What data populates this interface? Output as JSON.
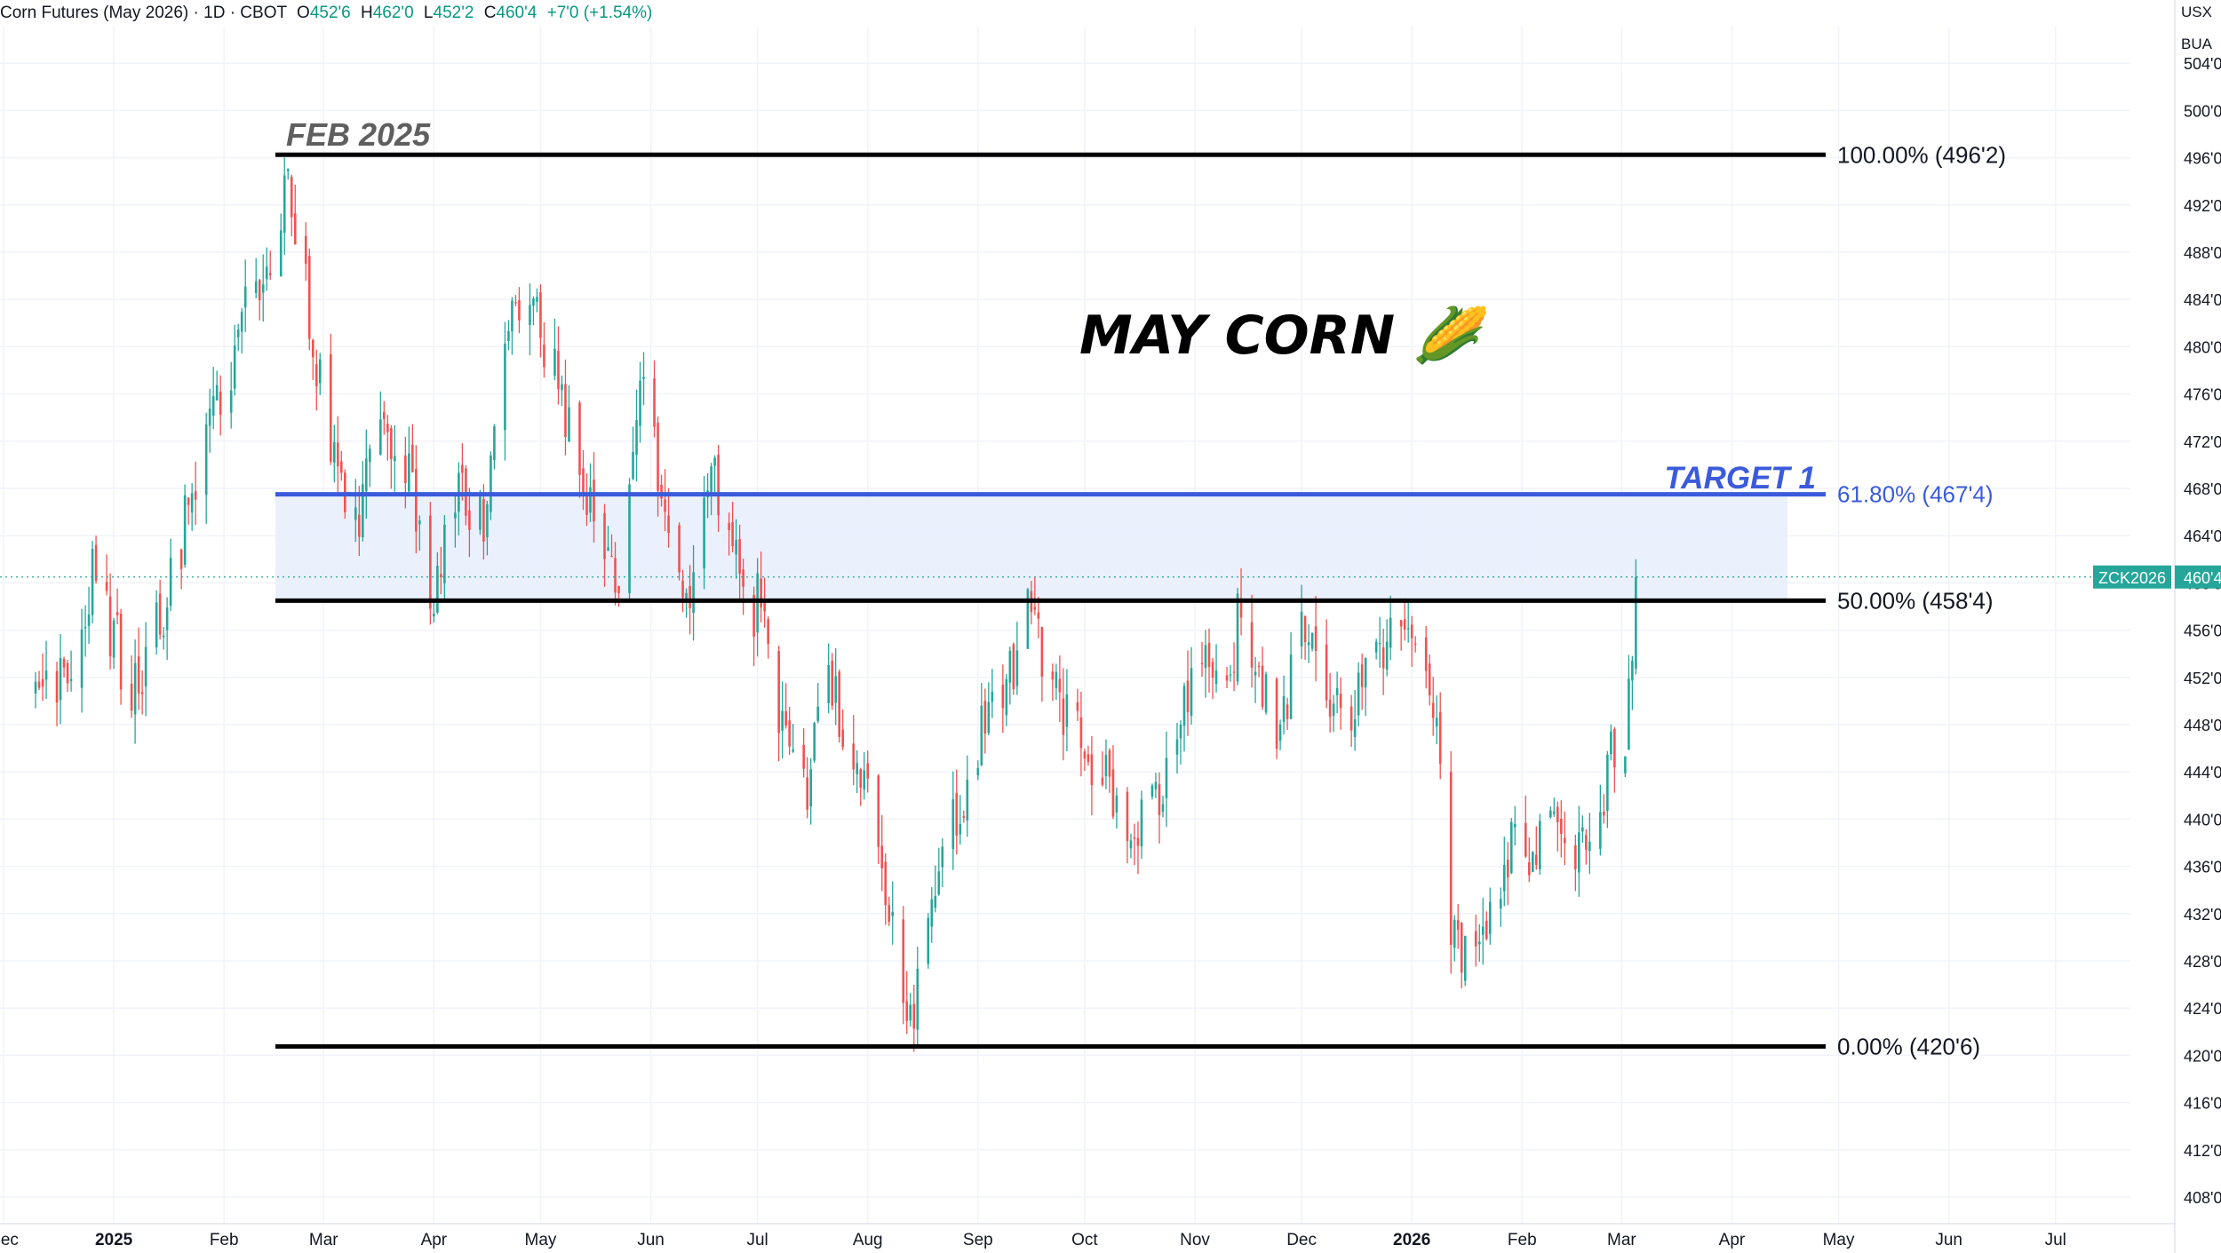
{
  "header": {
    "symbol_title": "Corn Futures (May 2026) · 1D · CBOT",
    "open_label": "O",
    "open": "452'6",
    "high_label": "H",
    "high": "462'0",
    "low_label": "L",
    "low": "452'2",
    "close_label": "C",
    "close": "460'4",
    "change": "+7'0 (+1.54%)"
  },
  "top_right": {
    "currency": "USX",
    "unit": "BUA"
  },
  "colors": {
    "up": "#26a69a",
    "down": "#ef5350",
    "target": "#3b5bdb",
    "zone_fill": "#e8eefc",
    "fib": "#000000"
  },
  "chart_data": {
    "type": "candlestick",
    "title": "MAY CORN 🌽",
    "annotations": [
      "FEB 2025",
      "TARGET 1"
    ],
    "x_ticks": [
      "Dec",
      "2025",
      "Feb",
      "Mar",
      "Apr",
      "May",
      "Jun",
      "Jul",
      "Aug",
      "Sep",
      "Oct",
      "Nov",
      "Dec",
      "2026",
      "Feb",
      "Mar",
      "Apr",
      "May",
      "Jun",
      "Jul"
    ],
    "y_ticks": [
      "504'0",
      "500'0",
      "496'0",
      "492'0",
      "488'0",
      "484'0",
      "480'0",
      "476'0",
      "472'0",
      "468'0",
      "464'0",
      "460'0",
      "456'0",
      "452'0",
      "448'0",
      "444'0",
      "440'0",
      "436'0",
      "432'0",
      "428'0",
      "424'0",
      "420'0",
      "416'0",
      "412'0",
      "408'0"
    ],
    "y_range": [
      406.5,
      505.0
    ],
    "fib_levels": [
      {
        "label": "100.00% (496'2)",
        "value": 496.25
      },
      {
        "label": "61.80% (467'4)",
        "value": 467.5
      },
      {
        "label": "50.00% (458'4)",
        "value": 458.5
      },
      {
        "label": "0.00% (420'6)",
        "value": 420.75
      }
    ],
    "last_price_tag": {
      "symbol": "ZCK2026",
      "value": "460'4",
      "price": 460.5
    },
    "closes": [
      {
        "date": "2024-12-10",
        "close": 449.0
      },
      {
        "date": "2024-12-18",
        "close": 452.0
      },
      {
        "date": "2024-12-26",
        "close": 461.0
      },
      {
        "date": "2025-01-06",
        "close": 451.0
      },
      {
        "date": "2025-01-14",
        "close": 457.0
      },
      {
        "date": "2025-01-22",
        "close": 466.0
      },
      {
        "date": "2025-01-30",
        "close": 475.0
      },
      {
        "date": "2025-02-06",
        "close": 482.0
      },
      {
        "date": "2025-02-14",
        "close": 488.0
      },
      {
        "date": "2025-02-19",
        "close": 495.0
      },
      {
        "date": "2025-02-25",
        "close": 483.0
      },
      {
        "date": "2025-03-04",
        "close": 470.0
      },
      {
        "date": "2025-03-10",
        "close": 465.0
      },
      {
        "date": "2025-03-18",
        "close": 473.0
      },
      {
        "date": "2025-03-26",
        "close": 468.0
      },
      {
        "date": "2025-04-01",
        "close": 459.0
      },
      {
        "date": "2025-04-08",
        "close": 468.0
      },
      {
        "date": "2025-04-15",
        "close": 465.0
      },
      {
        "date": "2025-04-22",
        "close": 482.0
      },
      {
        "date": "2025-04-28",
        "close": 483.0
      },
      {
        "date": "2025-05-05",
        "close": 478.0
      },
      {
        "date": "2025-05-12",
        "close": 468.0
      },
      {
        "date": "2025-05-19",
        "close": 463.0
      },
      {
        "date": "2025-05-23",
        "close": 459.0
      },
      {
        "date": "2025-05-30",
        "close": 477.0
      },
      {
        "date": "2025-06-06",
        "close": 463.0
      },
      {
        "date": "2025-06-12",
        "close": 460.0
      },
      {
        "date": "2025-06-18",
        "close": 470.0
      },
      {
        "date": "2025-06-24",
        "close": 463.0
      },
      {
        "date": "2025-06-30",
        "close": 457.0
      },
      {
        "date": "2025-07-01",
        "close": 460.0
      },
      {
        "date": "2025-07-07",
        "close": 449.0
      },
      {
        "date": "2025-07-14",
        "close": 442.0
      },
      {
        "date": "2025-07-21",
        "close": 451.0
      },
      {
        "date": "2025-07-28",
        "close": 446.0
      },
      {
        "date": "2025-08-04",
        "close": 437.0
      },
      {
        "date": "2025-08-08",
        "close": 433.0
      },
      {
        "date": "2025-08-12",
        "close": 422.0
      },
      {
        "date": "2025-08-18",
        "close": 431.0
      },
      {
        "date": "2025-08-25",
        "close": 439.0
      },
      {
        "date": "2025-09-02",
        "close": 447.0
      },
      {
        "date": "2025-09-09",
        "close": 451.0
      },
      {
        "date": "2025-09-15",
        "close": 457.0
      },
      {
        "date": "2025-09-22",
        "close": 452.0
      },
      {
        "date": "2025-09-29",
        "close": 447.0
      },
      {
        "date": "2025-10-06",
        "close": 444.0
      },
      {
        "date": "2025-10-14",
        "close": 438.0
      },
      {
        "date": "2025-10-21",
        "close": 442.0
      },
      {
        "date": "2025-10-28",
        "close": 448.0
      },
      {
        "date": "2025-11-03",
        "close": 455.0
      },
      {
        "date": "2025-11-10",
        "close": 452.0
      },
      {
        "date": "2025-11-14",
        "close": 458.0
      },
      {
        "date": "2025-11-18",
        "close": 453.0
      },
      {
        "date": "2025-11-24",
        "close": 447.0
      },
      {
        "date": "2025-12-01",
        "close": 455.0
      },
      {
        "date": "2025-12-08",
        "close": 451.0
      },
      {
        "date": "2025-12-15",
        "close": 448.0
      },
      {
        "date": "2025-12-22",
        "close": 454.0
      },
      {
        "date": "2025-12-29",
        "close": 457.0
      },
      {
        "date": "2026-01-05",
        "close": 451.0
      },
      {
        "date": "2026-01-09",
        "close": 447.0
      },
      {
        "date": "2026-01-12",
        "close": 432.0
      },
      {
        "date": "2026-01-16",
        "close": 429.0
      },
      {
        "date": "2026-01-22",
        "close": 432.0
      },
      {
        "date": "2026-01-28",
        "close": 437.0
      },
      {
        "date": "2026-02-04",
        "close": 438.0
      },
      {
        "date": "2026-02-10",
        "close": 441.0
      },
      {
        "date": "2026-02-17",
        "close": 437.0
      },
      {
        "date": "2026-02-23",
        "close": 440.0
      },
      {
        "date": "2026-02-27",
        "close": 447.0
      },
      {
        "date": "2026-03-02",
        "close": 445.0
      },
      {
        "date": "2026-03-05",
        "close": 460.5
      }
    ]
  }
}
